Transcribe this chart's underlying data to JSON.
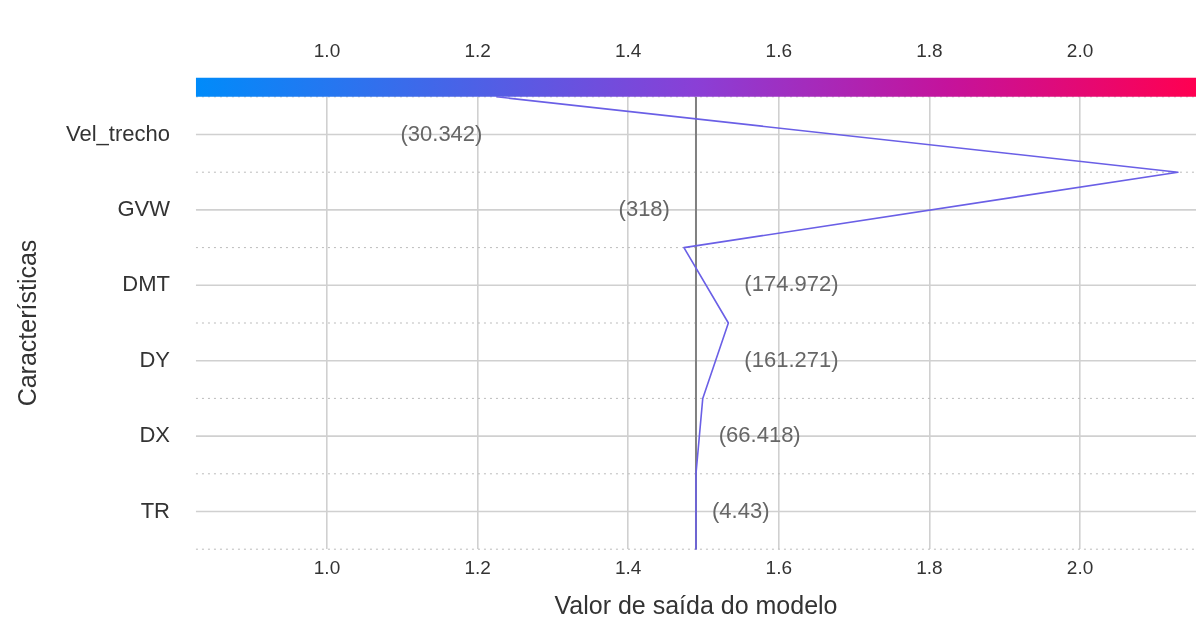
{
  "chart_data": {
    "type": "line",
    "orientation": "horizontal",
    "xlabel": "Valor de saída do modelo",
    "ylabel": "Características",
    "categories": [
      null,
      "Vel_trecho",
      null,
      "GVW",
      null,
      "DMT",
      null,
      "DY",
      null,
      "DX",
      null,
      "TR",
      null
    ],
    "series": [
      {
        "color": "#6a5fe6",
        "values": [
          1.225,
          null,
          2.13,
          null,
          1.474,
          null,
          1.533,
          null,
          1.499,
          null,
          1.49,
          null,
          1.49
        ]
      }
    ],
    "xlim": [
      0.826,
      2.154
    ],
    "xticks": [
      {
        "value": 1,
        "label": "1.0"
      },
      1.2,
      1.4,
      1.6,
      1.8,
      {
        "value": 2,
        "label": "2.0"
      }
    ],
    "x2lim": [
      0.826,
      2.154
    ],
    "x2ticks": [
      {
        "value": 1,
        "label": "1.0"
      },
      1.2,
      1.4,
      1.6,
      1.8,
      {
        "value": 2,
        "label": "2.0"
      }
    ],
    "ref_lines": [
      {
        "axis": "x",
        "value": 1.49,
        "color": "#808080"
      }
    ],
    "annotations": [
      "(30.342)",
      "(318)",
      "(174.972)",
      "(161.271)",
      "(66.418)",
      "(4.43)"
    ],
    "grid": true,
    "marker": "none",
    "line_style": "solid",
    "legend": false
  }
}
